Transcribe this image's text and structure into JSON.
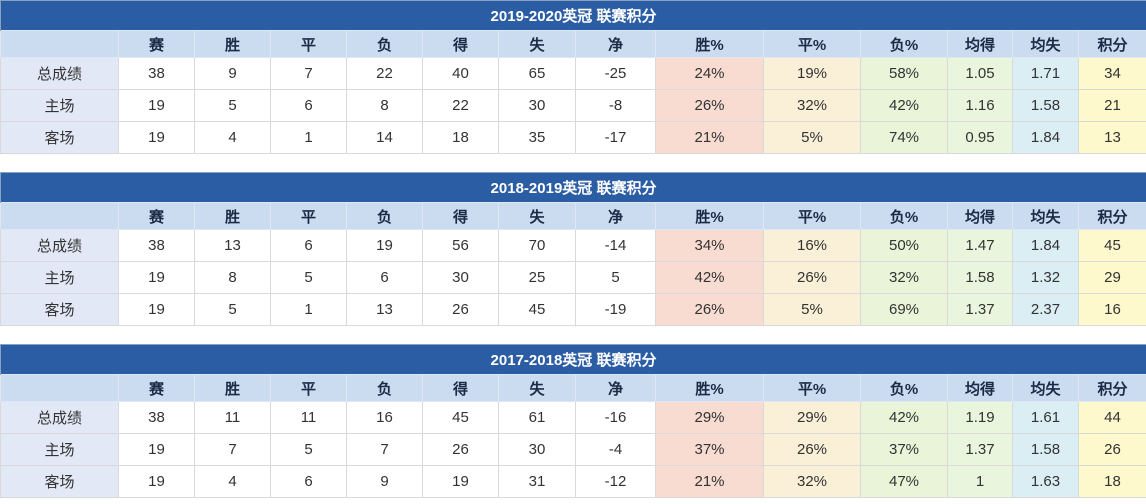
{
  "page": {
    "background": "#ffffff"
  },
  "colors": {
    "title_bg": "#2b5da4",
    "title_text": "#ffffff",
    "header_bg": "#cbdcf1",
    "header_text": "#1c2b45",
    "label_bg": "#e3e8f6",
    "cell_bg": "#ffffff",
    "cell_text": "#333333",
    "win_pct_bg": "#f8dcd2",
    "draw_pct_bg": "#faf0d8",
    "loss_pct_bg": "#e9f4d9",
    "avg_for_bg": "#eaf5dd",
    "avg_against_bg": "#daeef3",
    "points_bg": "#fdf9cd"
  },
  "columns": [
    "",
    "赛",
    "胜",
    "平",
    "负",
    "得",
    "失",
    "净",
    "胜%",
    "平%",
    "负%",
    "均得",
    "均失",
    "积分"
  ],
  "tables": [
    {
      "title": "2019-2020英冠 联赛积分",
      "rows": [
        {
          "label": "总成绩",
          "values": [
            "38",
            "9",
            "7",
            "22",
            "40",
            "65",
            "-25",
            "24%",
            "19%",
            "58%",
            "1.05",
            "1.71",
            "34"
          ]
        },
        {
          "label": "主场",
          "values": [
            "19",
            "5",
            "6",
            "8",
            "22",
            "30",
            "-8",
            "26%",
            "32%",
            "42%",
            "1.16",
            "1.58",
            "21"
          ]
        },
        {
          "label": "客场",
          "values": [
            "19",
            "4",
            "1",
            "14",
            "18",
            "35",
            "-17",
            "21%",
            "5%",
            "74%",
            "0.95",
            "1.84",
            "13"
          ]
        }
      ]
    },
    {
      "title": "2018-2019英冠 联赛积分",
      "rows": [
        {
          "label": "总成绩",
          "values": [
            "38",
            "13",
            "6",
            "19",
            "56",
            "70",
            "-14",
            "34%",
            "16%",
            "50%",
            "1.47",
            "1.84",
            "45"
          ]
        },
        {
          "label": "主场",
          "values": [
            "19",
            "8",
            "5",
            "6",
            "30",
            "25",
            "5",
            "42%",
            "26%",
            "32%",
            "1.58",
            "1.32",
            "29"
          ]
        },
        {
          "label": "客场",
          "values": [
            "19",
            "5",
            "1",
            "13",
            "26",
            "45",
            "-19",
            "26%",
            "5%",
            "69%",
            "1.37",
            "2.37",
            "16"
          ]
        }
      ]
    },
    {
      "title": "2017-2018英冠 联赛积分",
      "rows": [
        {
          "label": "总成绩",
          "values": [
            "38",
            "11",
            "11",
            "16",
            "45",
            "61",
            "-16",
            "29%",
            "29%",
            "42%",
            "1.19",
            "1.61",
            "44"
          ]
        },
        {
          "label": "主场",
          "values": [
            "19",
            "7",
            "5",
            "7",
            "26",
            "30",
            "-4",
            "37%",
            "26%",
            "37%",
            "1.37",
            "1.58",
            "26"
          ]
        },
        {
          "label": "客场",
          "values": [
            "19",
            "4",
            "6",
            "9",
            "19",
            "31",
            "-12",
            "21%",
            "32%",
            "47%",
            "1",
            "1.63",
            "18"
          ]
        }
      ]
    }
  ]
}
